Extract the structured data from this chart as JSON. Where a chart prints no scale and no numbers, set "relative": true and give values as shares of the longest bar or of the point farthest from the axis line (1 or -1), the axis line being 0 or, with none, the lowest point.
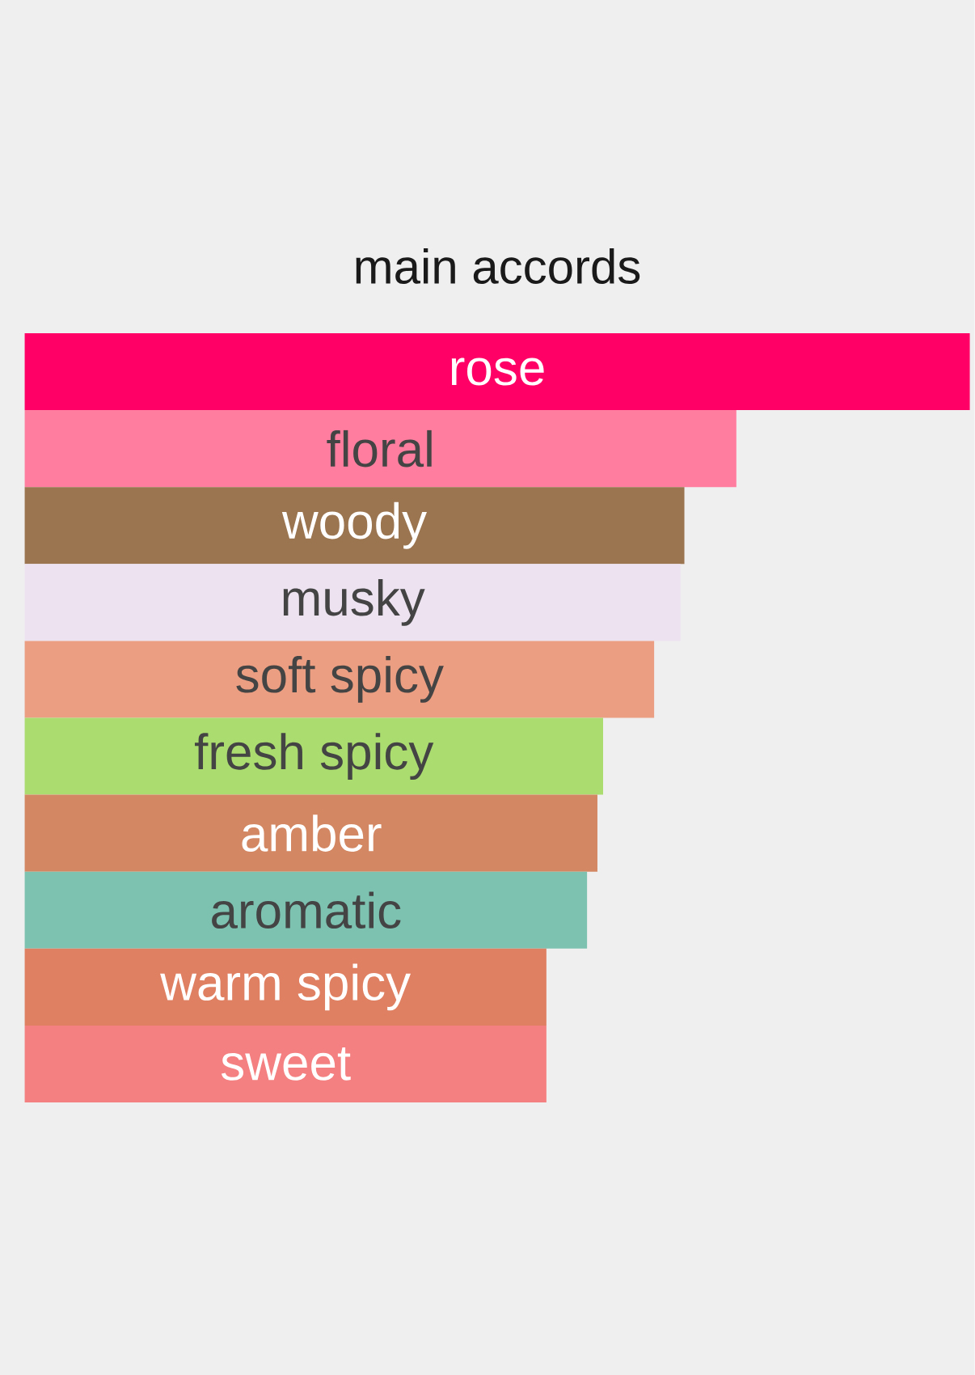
{
  "chart_data": {
    "type": "bar",
    "orientation": "horizontal",
    "relative": true,
    "title": "main accords",
    "categories": [
      "rose",
      "floral",
      "woody",
      "musky",
      "soft spicy",
      "fresh spicy",
      "amber",
      "aromatic",
      "warm spicy",
      "sweet"
    ],
    "values": [
      1,
      0.753,
      0.698,
      0.694,
      0.666,
      0.612,
      0.606,
      0.595,
      0.552,
      0.552
    ],
    "colors": [
      "#ff0066",
      "#ff7e9f",
      "#9b7450",
      "#ede3f0",
      "#eb9e82",
      "#abdc6f",
      "#d38863",
      "#7dc2b1",
      "#e08063",
      "#f48081"
    ]
  }
}
